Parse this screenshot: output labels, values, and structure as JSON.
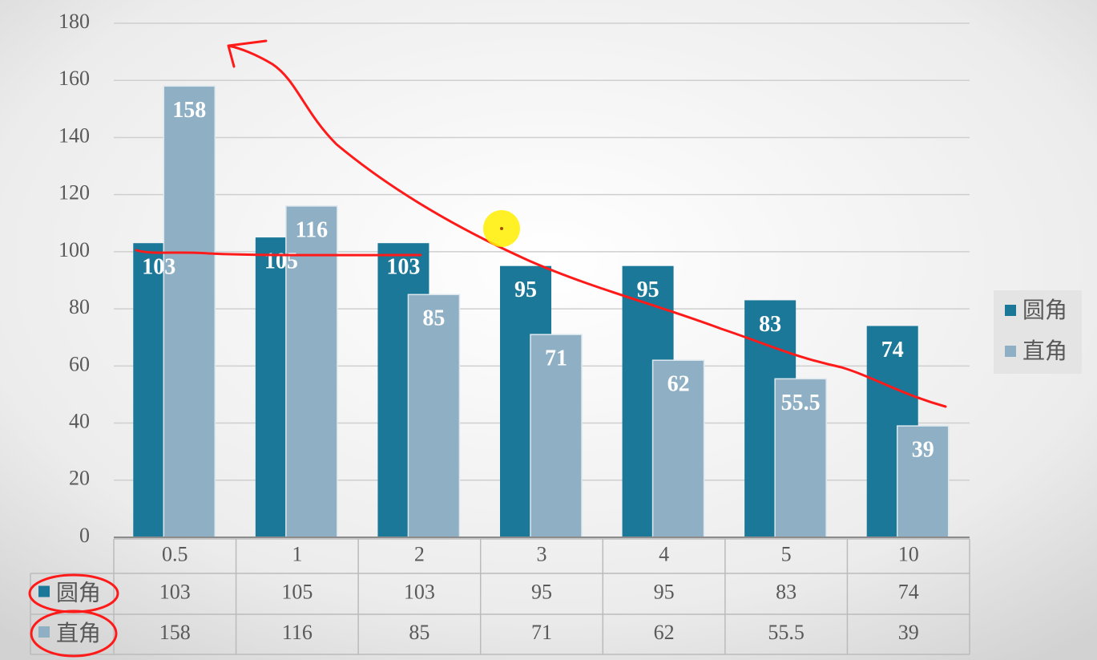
{
  "chart_data": {
    "type": "bar",
    "categories": [
      "0.5",
      "1",
      "2",
      "3",
      "4",
      "5",
      "10"
    ],
    "series": [
      {
        "name": "圆角",
        "color": "#1b7898",
        "values": [
          103,
          105,
          103,
          95,
          95,
          83,
          74
        ]
      },
      {
        "name": "直角",
        "color": "#8fb0c4",
        "values": [
          158,
          116,
          85,
          71,
          62,
          55.5,
          39
        ]
      }
    ],
    "ylim": [
      0,
      180
    ],
    "yticks": [
      0,
      20,
      40,
      60,
      80,
      100,
      120,
      140,
      160,
      180
    ],
    "grid": true,
    "legend": "right",
    "data_table": true
  }
}
